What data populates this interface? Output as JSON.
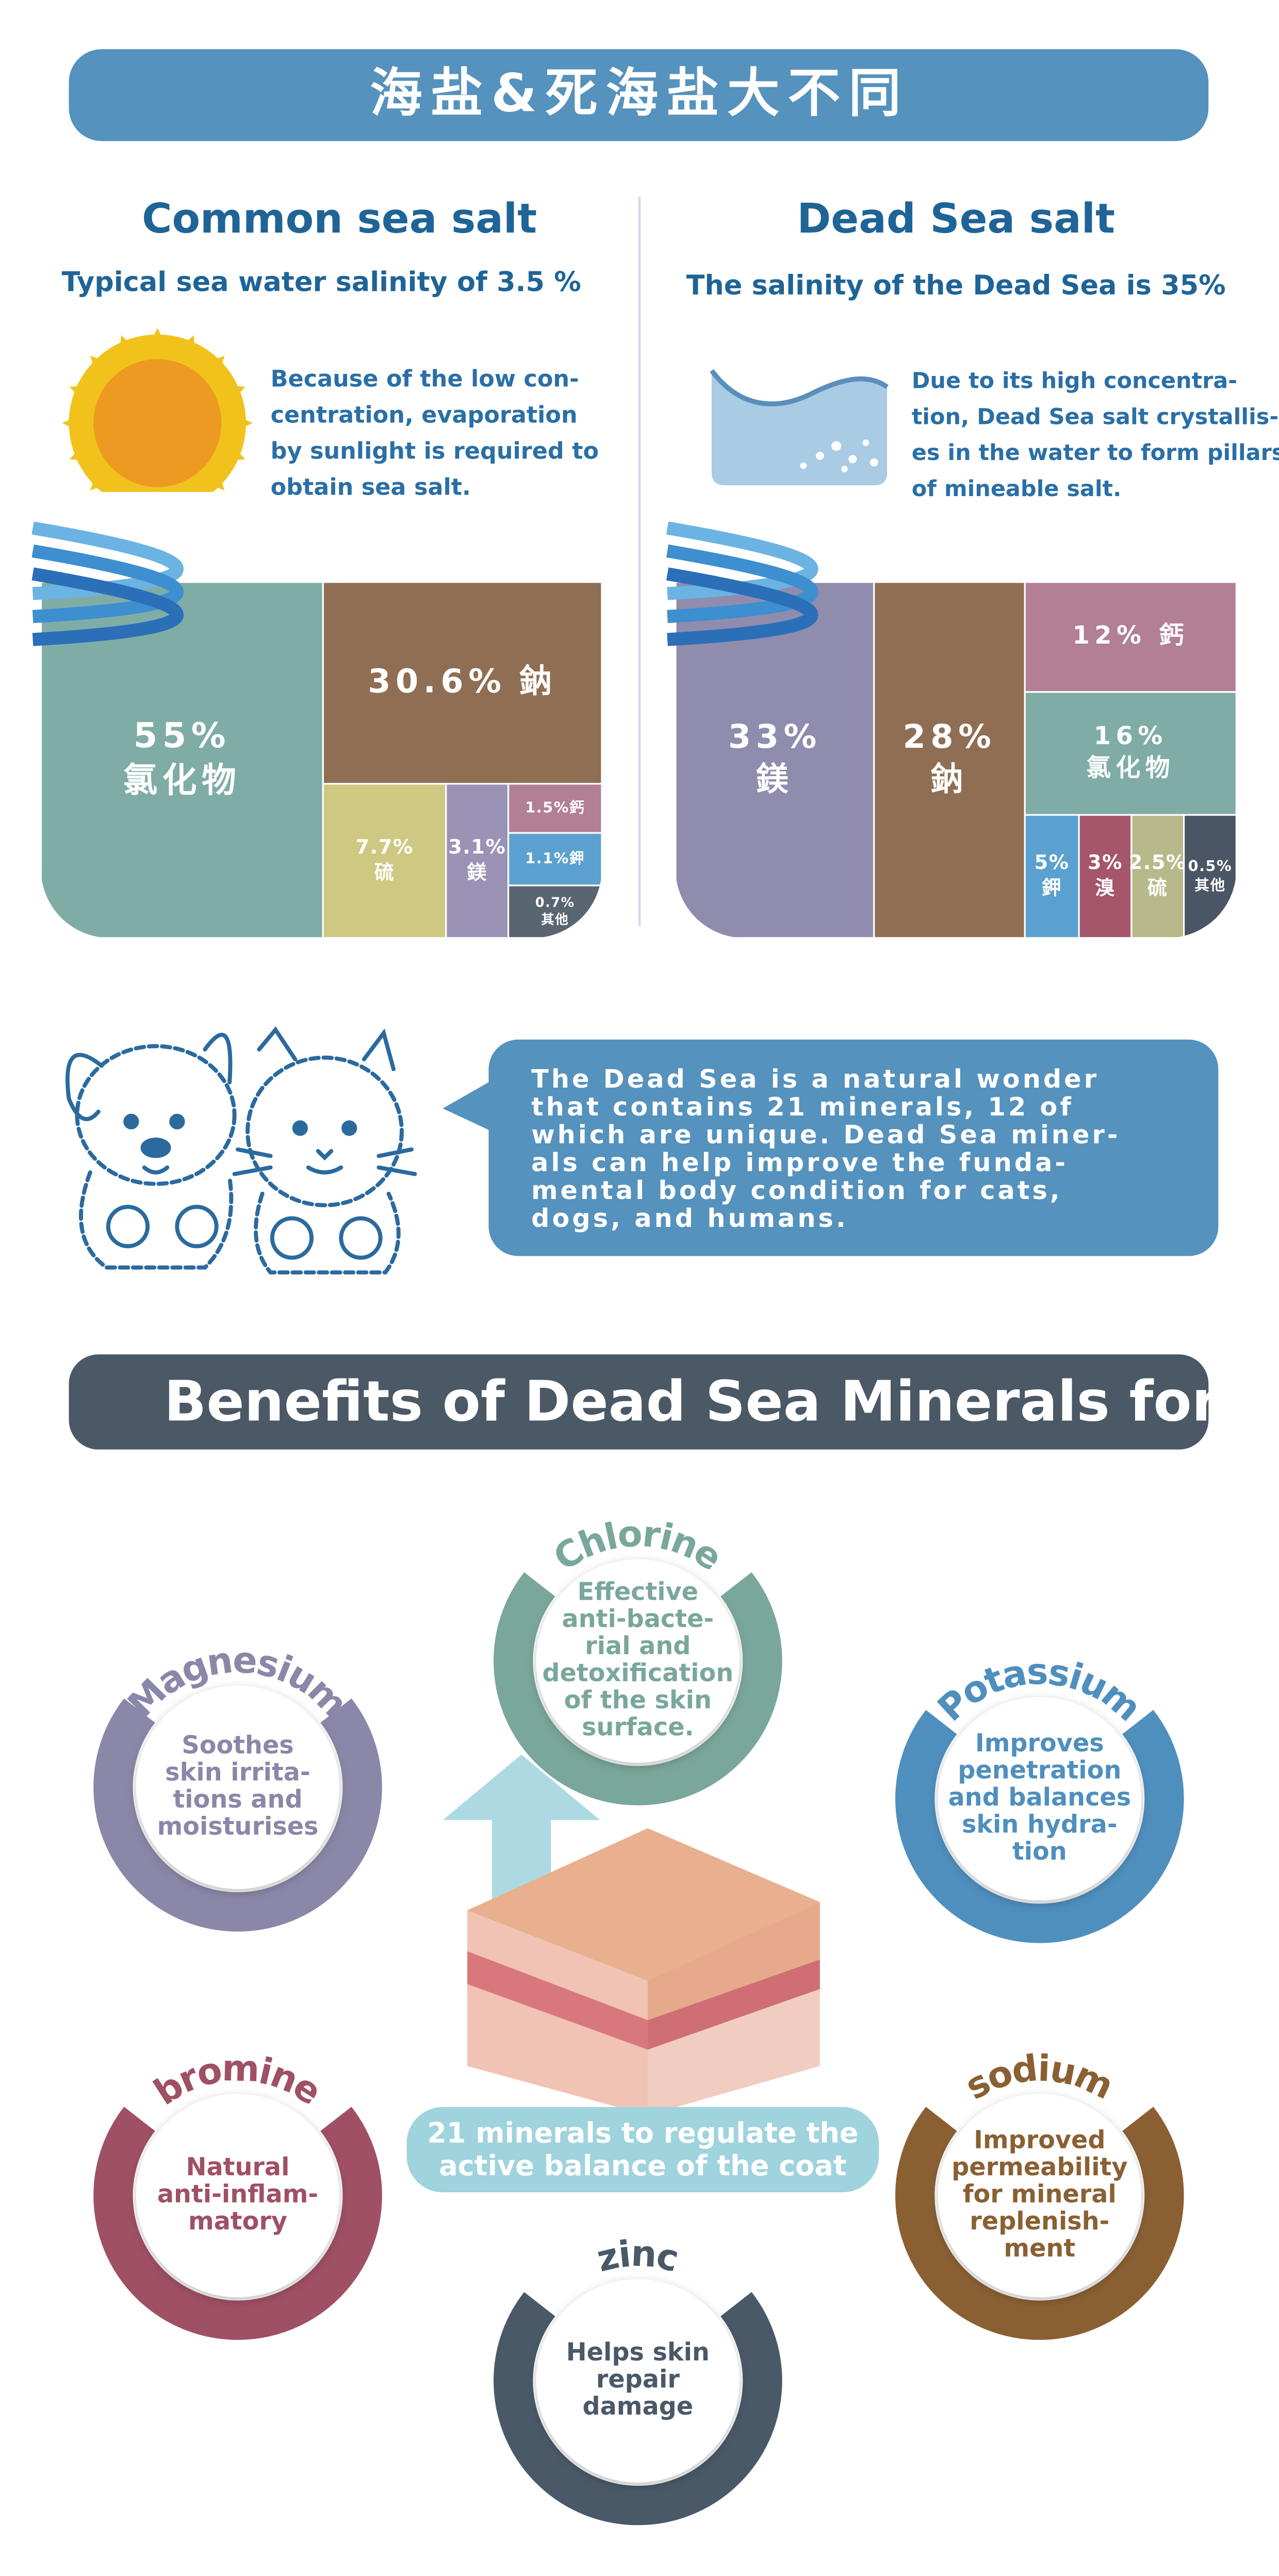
{
  "header": {
    "title": "海盐&死海盐大不同"
  },
  "comparison": [
    {
      "title": "Common sea salt",
      "subtitle": "Typical sea water salinity of 3.5 %",
      "description": [
        "Because of the low con-",
        "centration, evaporation",
        "by sunlight is required to",
        "obtain sea salt."
      ],
      "composition": [
        {
          "percent": "55%",
          "name": "氯化物"
        },
        {
          "percent": "30.6%",
          "name": "鈉"
        },
        {
          "percent": "7.7%",
          "name": "硫"
        },
        {
          "percent": "3.1%",
          "name": "鎂"
        },
        {
          "percent": "1.5%",
          "name": "鈣"
        },
        {
          "percent": "1.1%",
          "name": "鉀"
        },
        {
          "percent": "0.7%",
          "name": "其他"
        }
      ]
    },
    {
      "title": "Dead Sea salt",
      "subtitle": "The salinity of the Dead Sea is 35%",
      "description": [
        "Due to its high concentra-",
        "tion, Dead Sea salt crystallis-",
        "es in the water to form pillars",
        "of mineable salt."
      ],
      "composition": [
        {
          "percent": "33%",
          "name": "鎂"
        },
        {
          "percent": "28%",
          "name": "鈉"
        },
        {
          "percent": "12%",
          "name": "鈣"
        },
        {
          "percent": "16%",
          "name": "氯化物"
        },
        {
          "percent": "5%",
          "name": "鉀"
        },
        {
          "percent": "3%",
          "name": "溴"
        },
        {
          "percent": "2.5%",
          "name": "硫"
        },
        {
          "percent": "0.5%",
          "name": "其他"
        }
      ]
    }
  ],
  "callout": {
    "lines": [
      "The Dead Sea is a natural wonder",
      "that contains 21 minerals, 12 of",
      "which are unique. Dead Sea miner-",
      "als can help improve the funda-",
      "mental body condition for cats,",
      "dogs, and humans."
    ]
  },
  "benefits": {
    "title": "Benefits of Dead Sea Minerals for Skin",
    "center": [
      "21 minerals to regulate the",
      "active balance of the coat"
    ],
    "minerals": [
      {
        "name": "Chlorine",
        "text": [
          "Effective",
          "anti-bacte-",
          "rial and",
          "detoxification",
          "of the skin",
          "surface."
        ]
      },
      {
        "name": "Magnesium",
        "text": [
          "Soothes",
          "skin irrita-",
          "tions and",
          "moisturises"
        ]
      },
      {
        "name": "Potassium",
        "text": [
          "Improves",
          "penetration",
          "and balances",
          "skin hydra-",
          "tion"
        ]
      },
      {
        "name": "bromine",
        "text": [
          "Natural",
          "anti-inflam-",
          "matory"
        ]
      },
      {
        "name": "sodium",
        "text": [
          "Improved",
          "permeability",
          "for mineral",
          "replenish-",
          "ment"
        ]
      },
      {
        "name": "zinc",
        "text": [
          "Helps skin",
          "repair",
          "damage"
        ]
      }
    ]
  }
}
